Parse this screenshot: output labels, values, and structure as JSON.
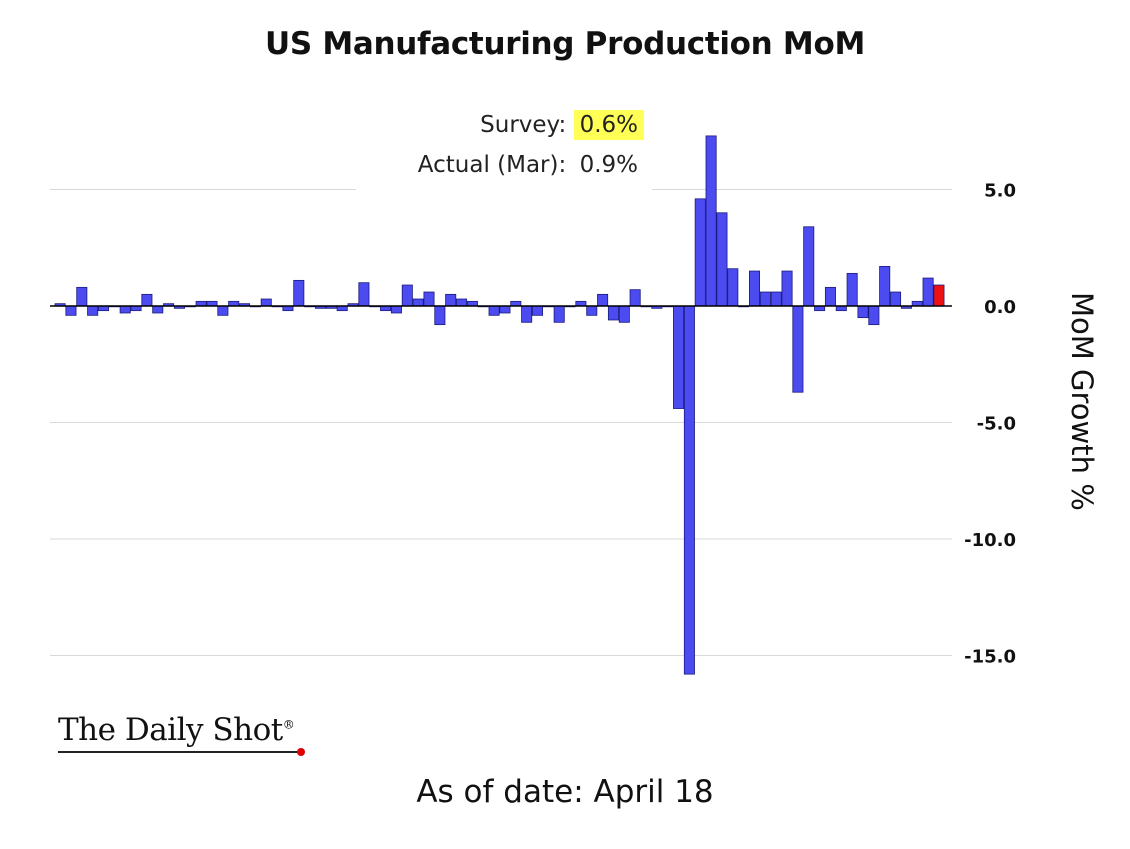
{
  "header": {
    "title": "US Manufacturing Production MoM"
  },
  "footer": {
    "as_of": "As of date: April 18"
  },
  "branding": {
    "logo_text": "The Daily Shot",
    "logo_mark": "®"
  },
  "annotation": {
    "survey_label": "Survey:",
    "survey_value": "0.6%",
    "actual_label": "Actual (Mar):",
    "actual_value": "0.9%"
  },
  "colors": {
    "bar": "#4b4bf0",
    "bar_outline": "#1a1a80",
    "latest_bar": "#ee1111",
    "highlight": "#ffff55",
    "gridline": "#d9d9d9",
    "zero_line": "#000000",
    "logo_dot": "#e00000"
  },
  "chart_data": {
    "type": "bar",
    "ylabel": "MoM Growth %",
    "ylim": [
      -16.5,
      7.5
    ],
    "yticks": [
      5.0,
      0.0,
      -5.0,
      -10.0,
      -15.0
    ],
    "ytick_labels": [
      "5.0",
      "0.0",
      "-5.0",
      "-10.0",
      "-15.0"
    ],
    "grid": true,
    "axis_position": "right",
    "series": [
      {
        "values": [
          0.1,
          -0.4,
          0.8,
          -0.4,
          -0.2,
          0.0,
          -0.3,
          -0.2,
          0.5,
          -0.3,
          0.1,
          -0.1,
          0.0,
          0.2,
          0.2,
          -0.4,
          0.2,
          0.1,
          0.0,
          0.3,
          0.0,
          -0.2,
          1.1,
          0.0,
          -0.1,
          -0.1,
          -0.2,
          0.1,
          1.0,
          0.0,
          -0.2,
          -0.3,
          0.9,
          0.3,
          0.6,
          -0.8,
          0.5,
          0.3,
          0.2,
          0.0,
          -0.4,
          -0.3,
          0.2,
          -0.7,
          -0.4,
          0.0,
          -0.7,
          0.0,
          0.2,
          -0.4,
          0.5,
          -0.6,
          -0.7,
          0.7,
          0.0,
          -0.1,
          0.0,
          -4.4,
          -15.8,
          4.6,
          7.3,
          4.0,
          1.6,
          0.0,
          1.5,
          0.6,
          0.6,
          1.5,
          -3.7,
          3.4,
          -0.2,
          0.8,
          -0.2,
          1.4,
          -0.5,
          -0.8,
          1.7,
          0.6,
          -0.1,
          0.2,
          1.2,
          0.9
        ],
        "highlight_last": true
      }
    ]
  }
}
